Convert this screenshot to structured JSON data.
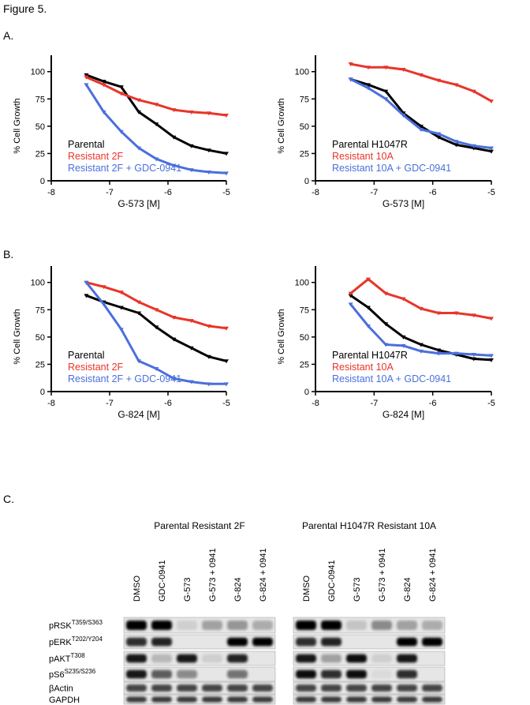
{
  "figure_title": "Figure 5.",
  "panel_labels": [
    "A.",
    "B.",
    "C."
  ],
  "chart_data": [
    {
      "type": "line",
      "x_label": "G-573 [M]",
      "y_label": "% Cell Growth",
      "x": [
        -7.4,
        -7.1,
        -6.8,
        -6.5,
        -6.2,
        -5.9,
        -5.6,
        -5.3,
        -5
      ],
      "xlim": [
        -8,
        -5
      ],
      "xticks": [
        -8,
        -7,
        -6,
        -5
      ],
      "ylim": [
        0,
        115
      ],
      "yticks": [
        0,
        25,
        50,
        75,
        100
      ],
      "series": [
        {
          "name": "Parental",
          "color": "#000000",
          "values": [
            97,
            91,
            86,
            63,
            52,
            40,
            32,
            28,
            25
          ]
        },
        {
          "name": "Resistant 2F",
          "color": "#e8352a",
          "values": [
            95,
            88,
            80,
            74,
            70,
            65,
            63,
            62,
            60
          ]
        },
        {
          "name": "Resistant 2F + GDC-0941",
          "color": "#4a6fdc",
          "values": [
            88,
            63,
            45,
            30,
            20,
            14,
            10,
            8,
            7
          ]
        }
      ]
    },
    {
      "type": "line",
      "x_label": "G-573 [M]",
      "y_label": "% Cell Growth",
      "x": [
        -7.4,
        -7.1,
        -6.8,
        -6.5,
        -6.2,
        -5.9,
        -5.6,
        -5.3,
        -5
      ],
      "xlim": [
        -8,
        -5
      ],
      "xticks": [
        -8,
        -7,
        -6,
        -5
      ],
      "ylim": [
        0,
        115
      ],
      "yticks": [
        0,
        25,
        50,
        75,
        100
      ],
      "series": [
        {
          "name": "Parental H1047R",
          "color": "#000000",
          "values": [
            93,
            88,
            82,
            62,
            50,
            40,
            33,
            30,
            27
          ]
        },
        {
          "name": "Resistant 10A",
          "color": "#e8352a",
          "values": [
            107,
            104,
            104,
            102,
            97,
            92,
            88,
            82,
            73
          ]
        },
        {
          "name": "Resistant 10A + GDC-0941",
          "color": "#4a6fdc",
          "values": [
            93,
            85,
            75,
            60,
            47,
            43,
            36,
            32,
            30
          ]
        }
      ]
    },
    {
      "type": "line",
      "x_label": "G-824 [M]",
      "y_label": "% Cell Growth",
      "x": [
        -7.4,
        -7.1,
        -6.8,
        -6.5,
        -6.2,
        -5.9,
        -5.6,
        -5.3,
        -5
      ],
      "xlim": [
        -8,
        -5
      ],
      "xticks": [
        -8,
        -7,
        -6,
        -5
      ],
      "ylim": [
        0,
        115
      ],
      "yticks": [
        0,
        25,
        50,
        75,
        100
      ],
      "series": [
        {
          "name": "Parental",
          "color": "#000000",
          "values": [
            88,
            82,
            77,
            72,
            59,
            48,
            40,
            32,
            28
          ]
        },
        {
          "name": "Resistant 2F",
          "color": "#e8352a",
          "values": [
            100,
            96,
            91,
            82,
            75,
            68,
            65,
            60,
            58
          ]
        },
        {
          "name": "Resistant 2F + GDC-0941",
          "color": "#4a6fdc",
          "values": [
            100,
            80,
            57,
            28,
            21,
            12,
            9,
            7,
            7
          ]
        }
      ]
    },
    {
      "type": "line",
      "x_label": "G-824 [M]",
      "y_label": "% Cell Growth",
      "x": [
        -7.4,
        -7.1,
        -6.8,
        -6.5,
        -6.2,
        -5.9,
        -5.6,
        -5.3,
        -5
      ],
      "xlim": [
        -8,
        -5
      ],
      "xticks": [
        -8,
        -7,
        -6,
        -5
      ],
      "ylim": [
        0,
        115
      ],
      "yticks": [
        0,
        25,
        50,
        75,
        100
      ],
      "series": [
        {
          "name": "Parental H1047R",
          "color": "#000000",
          "values": [
            88,
            77,
            62,
            50,
            43,
            38,
            34,
            30,
            29
          ]
        },
        {
          "name": "Resistant 10A",
          "color": "#e8352a",
          "values": [
            90,
            103,
            90,
            85,
            76,
            72,
            72,
            70,
            67
          ]
        },
        {
          "name": "Resistant 10A + GDC-0941",
          "color": "#4a6fdc",
          "values": [
            80,
            60,
            43,
            42,
            37,
            35,
            35,
            34,
            33
          ]
        }
      ]
    }
  ],
  "blot": {
    "groups": [
      "Parental Resistant 2F",
      "Parental H1047R Resistant 10A"
    ],
    "lanes": [
      "DMSO",
      "GDC-0941",
      "G-573",
      "G-573 + 0941",
      "G-824",
      "G-824 + 0941"
    ],
    "rows": [
      {
        "protein": "pRSK",
        "site": "T359/S363",
        "intensity": [
          1,
          1,
          0.1,
          0.3,
          0.35,
          0.25,
          1,
          1,
          0.15,
          0.4,
          0.3,
          0.25
        ]
      },
      {
        "protein": "pERK",
        "site": "T202/Y204",
        "intensity": [
          0.8,
          0.85,
          0,
          0,
          1,
          1,
          0.8,
          0.85,
          0,
          0,
          1,
          1
        ]
      },
      {
        "protein": "pAKT",
        "site": "T308",
        "intensity": [
          0.9,
          0.2,
          0.9,
          0.1,
          0.85,
          0,
          0.9,
          0.3,
          0.95,
          0.1,
          0.9,
          0
        ]
      },
      {
        "protein": "pS6",
        "site": "S235/S236",
        "intensity": [
          0.9,
          0.6,
          0.4,
          0,
          0.5,
          0,
          0.95,
          0.8,
          0.95,
          0.05,
          0.8,
          0
        ]
      },
      {
        "protein": "βActin",
        "intensity": [
          0.7,
          0.7,
          0.7,
          0.7,
          0.7,
          0.7,
          0.7,
          0.7,
          0.7,
          0.7,
          0.7,
          0.7
        ]
      },
      {
        "protein": "GAPDH",
        "intensity": [
          0.75,
          0.75,
          0.75,
          0.75,
          0.75,
          0.75,
          0.75,
          0.75,
          0.75,
          0.75,
          0.75,
          0.75
        ]
      }
    ]
  }
}
